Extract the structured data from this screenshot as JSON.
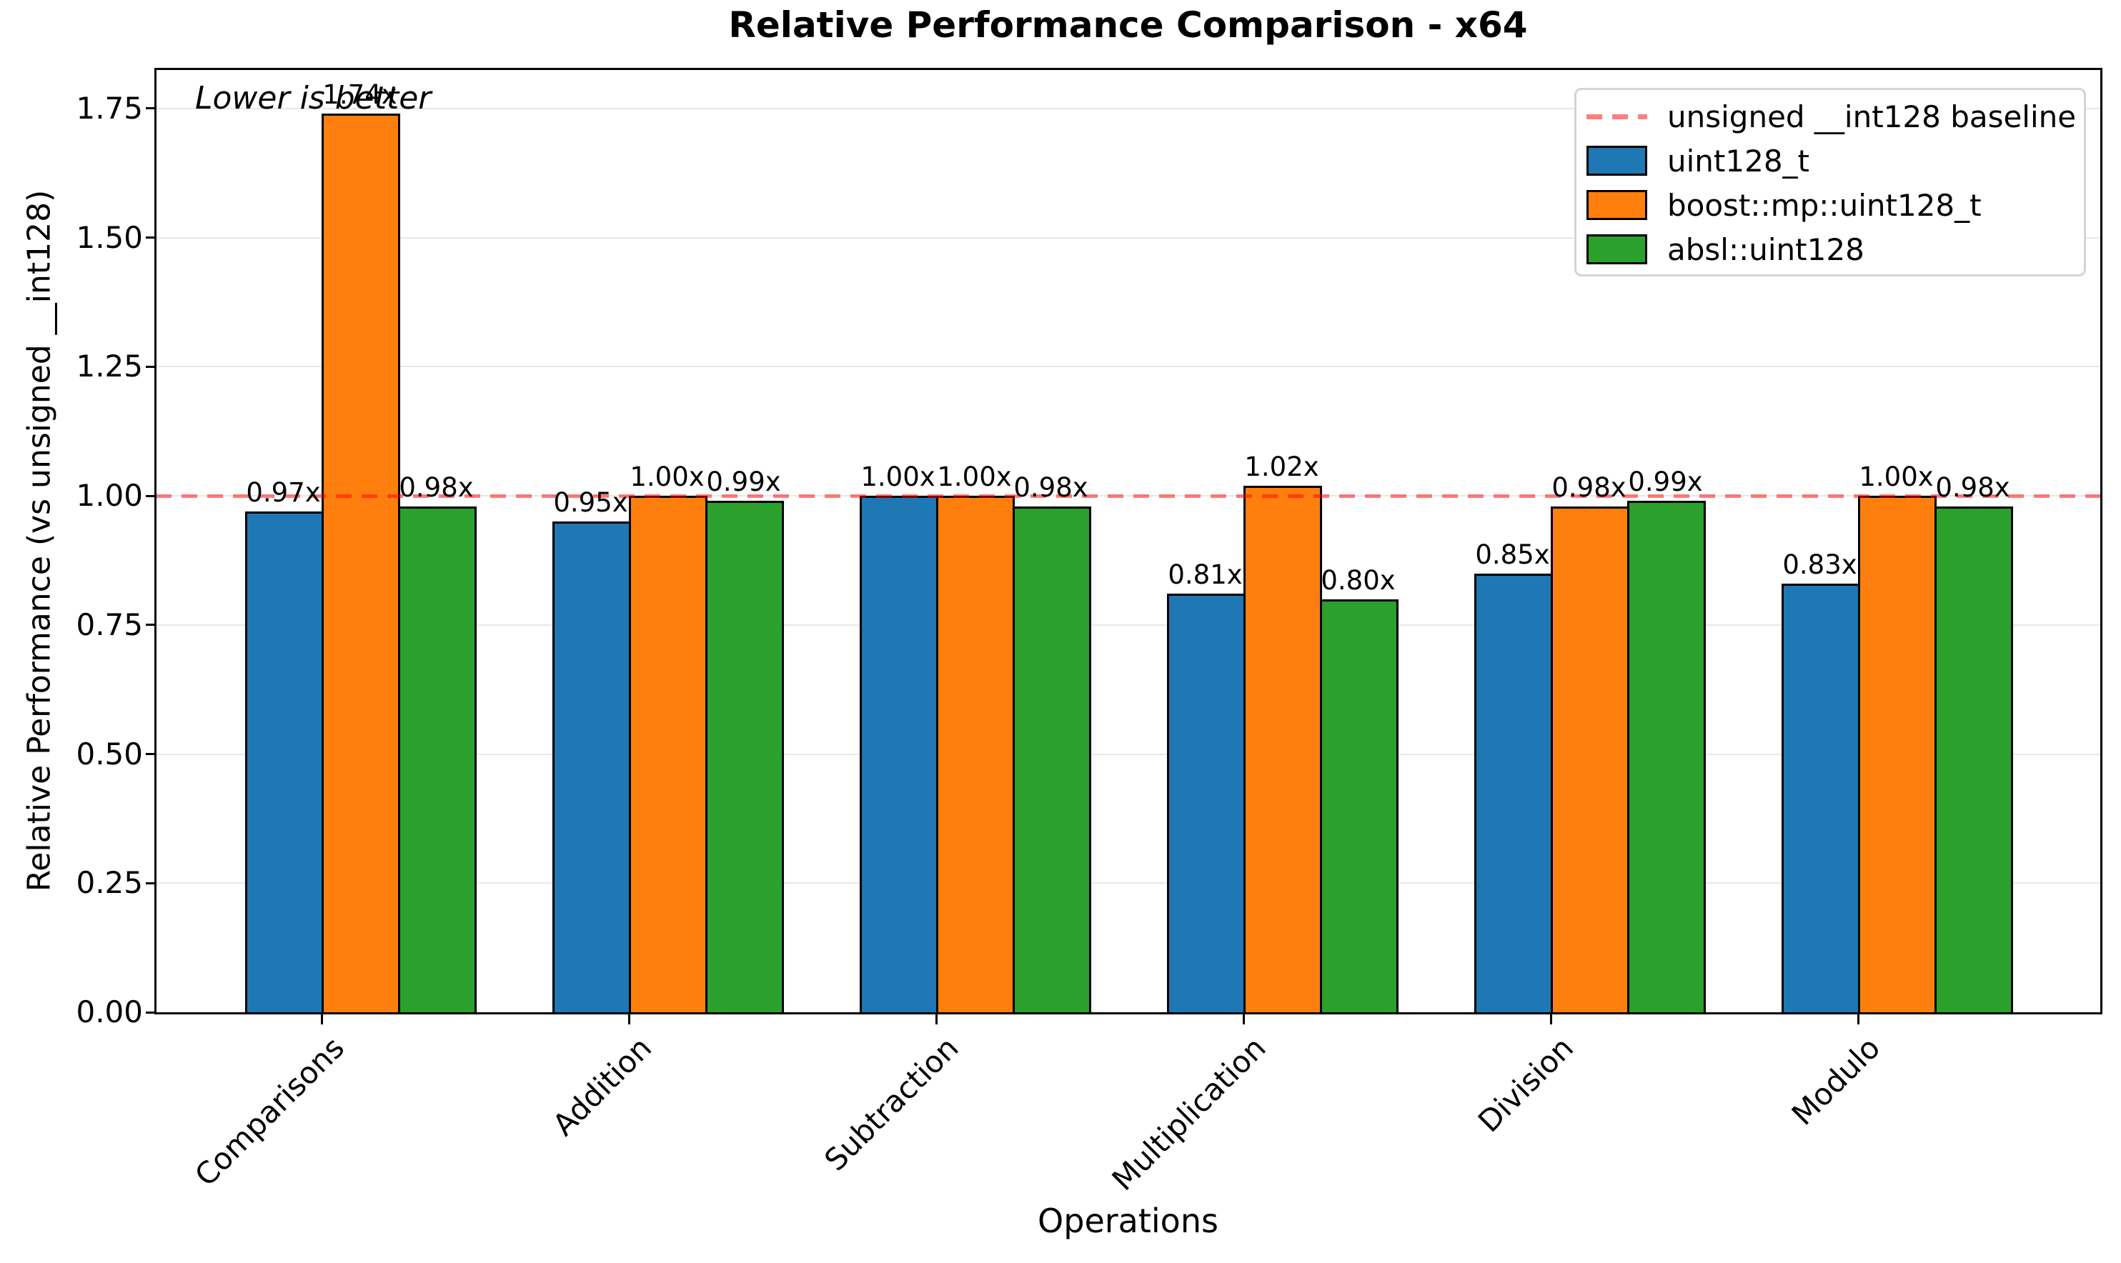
{
  "chart_data": {
    "type": "bar",
    "title": "Relative Performance Comparison - x64",
    "xlabel": "Operations",
    "ylabel": "Relative Performance (vs unsigned __int128)",
    "annotation": "Lower is better",
    "categories": [
      "Comparisons",
      "Addition",
      "Subtraction",
      "Multiplication",
      "Division",
      "Modulo"
    ],
    "series": [
      {
        "name": "uint128_t",
        "color": "#1f77b4",
        "values": [
          0.97,
          0.95,
          1.0,
          0.81,
          0.85,
          0.83
        ],
        "labels": [
          "0.97x",
          "0.95x",
          "1.00x",
          "0.81x",
          "0.85x",
          "0.83x"
        ]
      },
      {
        "name": "boost::mp::uint128_t",
        "color": "#ff7f0e",
        "values": [
          1.74,
          1.0,
          1.0,
          1.02,
          0.98,
          1.0
        ],
        "labels": [
          "1.74x",
          "1.00x",
          "1.00x",
          "1.02x",
          "0.98x",
          "1.00x"
        ]
      },
      {
        "name": "absl::uint128",
        "color": "#2ca02c",
        "values": [
          0.98,
          0.99,
          0.98,
          0.8,
          0.99,
          0.98
        ],
        "labels": [
          "0.98x",
          "0.99x",
          "0.98x",
          "0.80x",
          "0.99x",
          "0.98x"
        ]
      }
    ],
    "baseline": {
      "value": 1.0,
      "label": "unsigned __int128 baseline",
      "color": "#ff0000",
      "alpha": 0.5,
      "style": "dashed"
    },
    "ylim": [
      0,
      1.826
    ],
    "yticks": [
      "0.00",
      "0.25",
      "0.50",
      "0.75",
      "1.00",
      "1.25",
      "1.50",
      "1.75"
    ],
    "grid": "horizontal",
    "legend_position": "upper right",
    "bar_edge_color": "#000000",
    "value_label_suffix": "x"
  }
}
